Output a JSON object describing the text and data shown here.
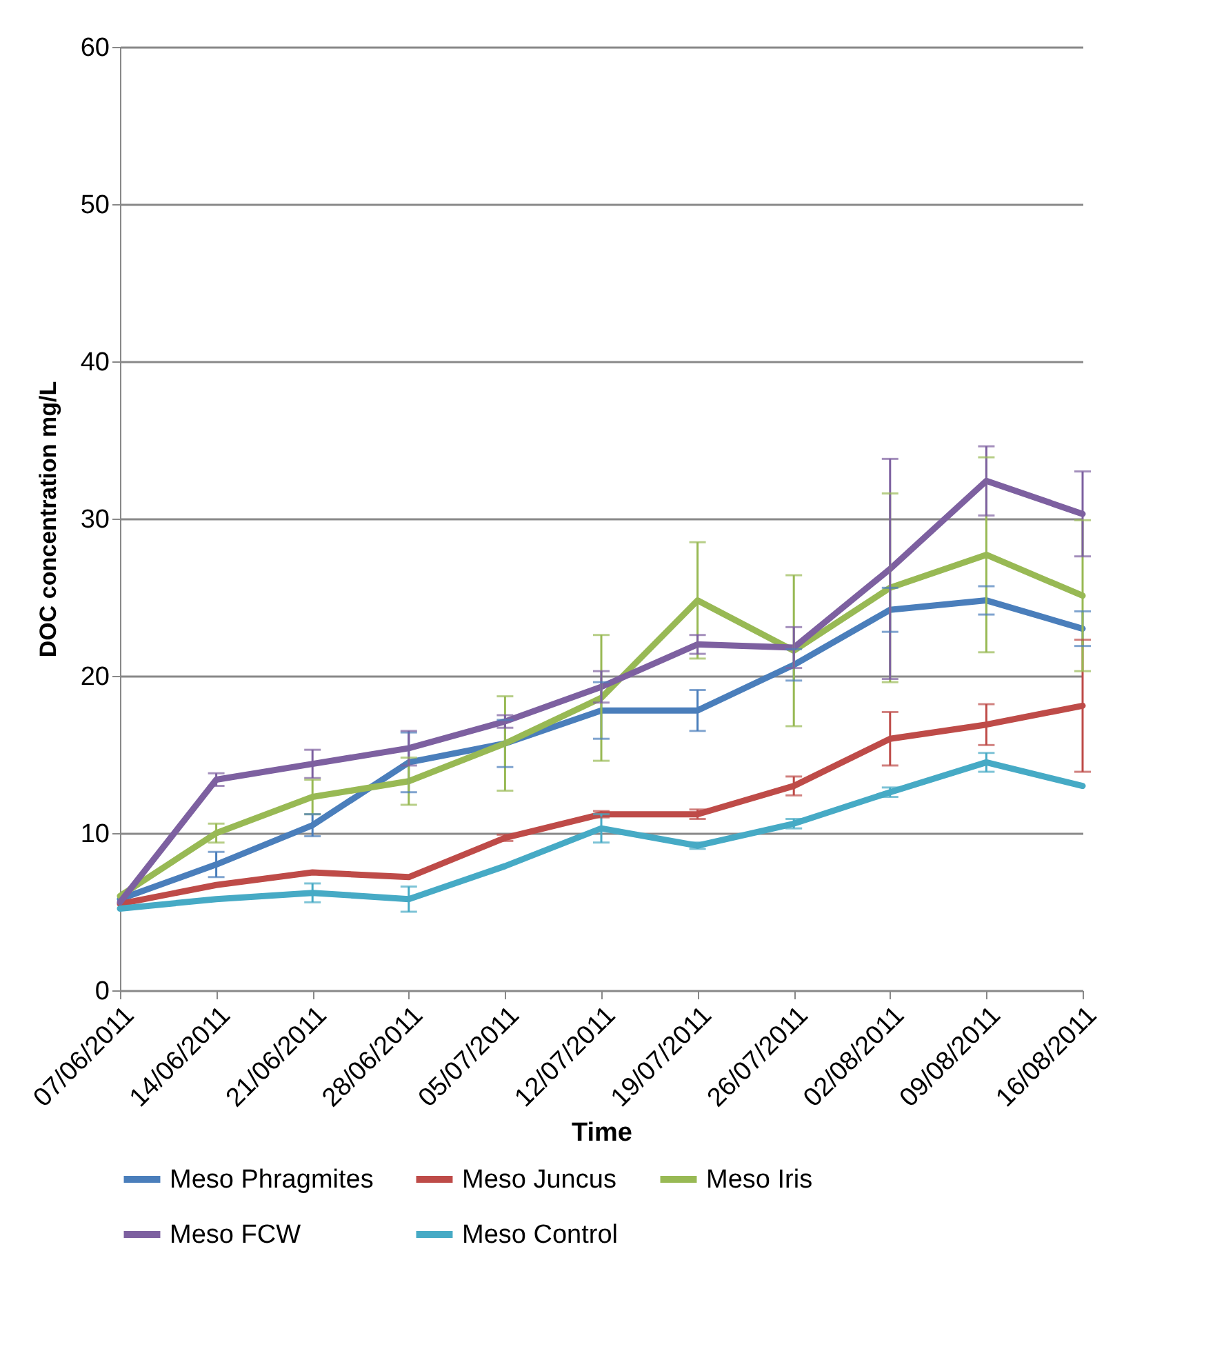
{
  "chart_data": {
    "type": "line",
    "xlabel": "Time",
    "ylabel": "DOC concentration mg/L",
    "categories": [
      "07/06/2011",
      "14/06/2011",
      "21/06/2011",
      "28/06/2011",
      "05/07/2011",
      "12/07/2011",
      "19/07/2011",
      "26/07/2011",
      "02/08/2011",
      "09/08/2011",
      "16/08/2011"
    ],
    "ylim": [
      0,
      60
    ],
    "yticks": [
      0,
      10,
      20,
      30,
      40,
      50,
      60
    ],
    "grid": "y",
    "legend": "bottom",
    "marker": "none",
    "line_style": "solid",
    "series": [
      {
        "name": "Meso Phragmites",
        "color": "#4a7ebb",
        "values": [
          5.8,
          8.0,
          10.5,
          14.5,
          15.7,
          17.8,
          17.8,
          20.7,
          24.2,
          24.8,
          23.0
        ],
        "errors": [
          null,
          0.8,
          0.7,
          1.9,
          1.5,
          1.8,
          1.3,
          1.0,
          1.4,
          0.9,
          1.1
        ]
      },
      {
        "name": "Meso Juncus",
        "color": "#be4b48",
        "values": [
          5.5,
          6.7,
          7.5,
          7.2,
          9.7,
          11.2,
          11.2,
          13.0,
          16.0,
          16.9,
          18.1
        ],
        "errors": [
          null,
          null,
          null,
          null,
          0.2,
          0.2,
          0.3,
          0.6,
          1.7,
          1.3,
          4.2
        ]
      },
      {
        "name": "Meso Iris",
        "color": "#98b954",
        "values": [
          6.0,
          10.0,
          12.3,
          13.3,
          15.7,
          18.6,
          24.8,
          21.6,
          25.6,
          27.7,
          25.1
        ],
        "errors": [
          null,
          0.6,
          1.1,
          1.5,
          3.0,
          4.0,
          3.7,
          4.8,
          6.0,
          6.2,
          4.8
        ]
      },
      {
        "name": "Meso FCW",
        "color": "#7d60a0",
        "values": [
          5.6,
          13.4,
          14.4,
          15.4,
          17.1,
          19.3,
          22.0,
          21.8,
          26.8,
          32.4,
          30.3
        ],
        "errors": [
          null,
          0.4,
          0.9,
          1.1,
          0.4,
          1.0,
          0.6,
          1.3,
          7.0,
          2.2,
          2.7
        ]
      },
      {
        "name": "Meso Control",
        "color": "#46aac5",
        "values": [
          5.2,
          5.8,
          6.2,
          5.8,
          7.9,
          10.3,
          9.2,
          10.6,
          12.6,
          14.5,
          13.0
        ],
        "errors": [
          null,
          null,
          0.6,
          0.8,
          null,
          0.9,
          0.2,
          0.3,
          0.3,
          0.6,
          null
        ]
      }
    ]
  }
}
